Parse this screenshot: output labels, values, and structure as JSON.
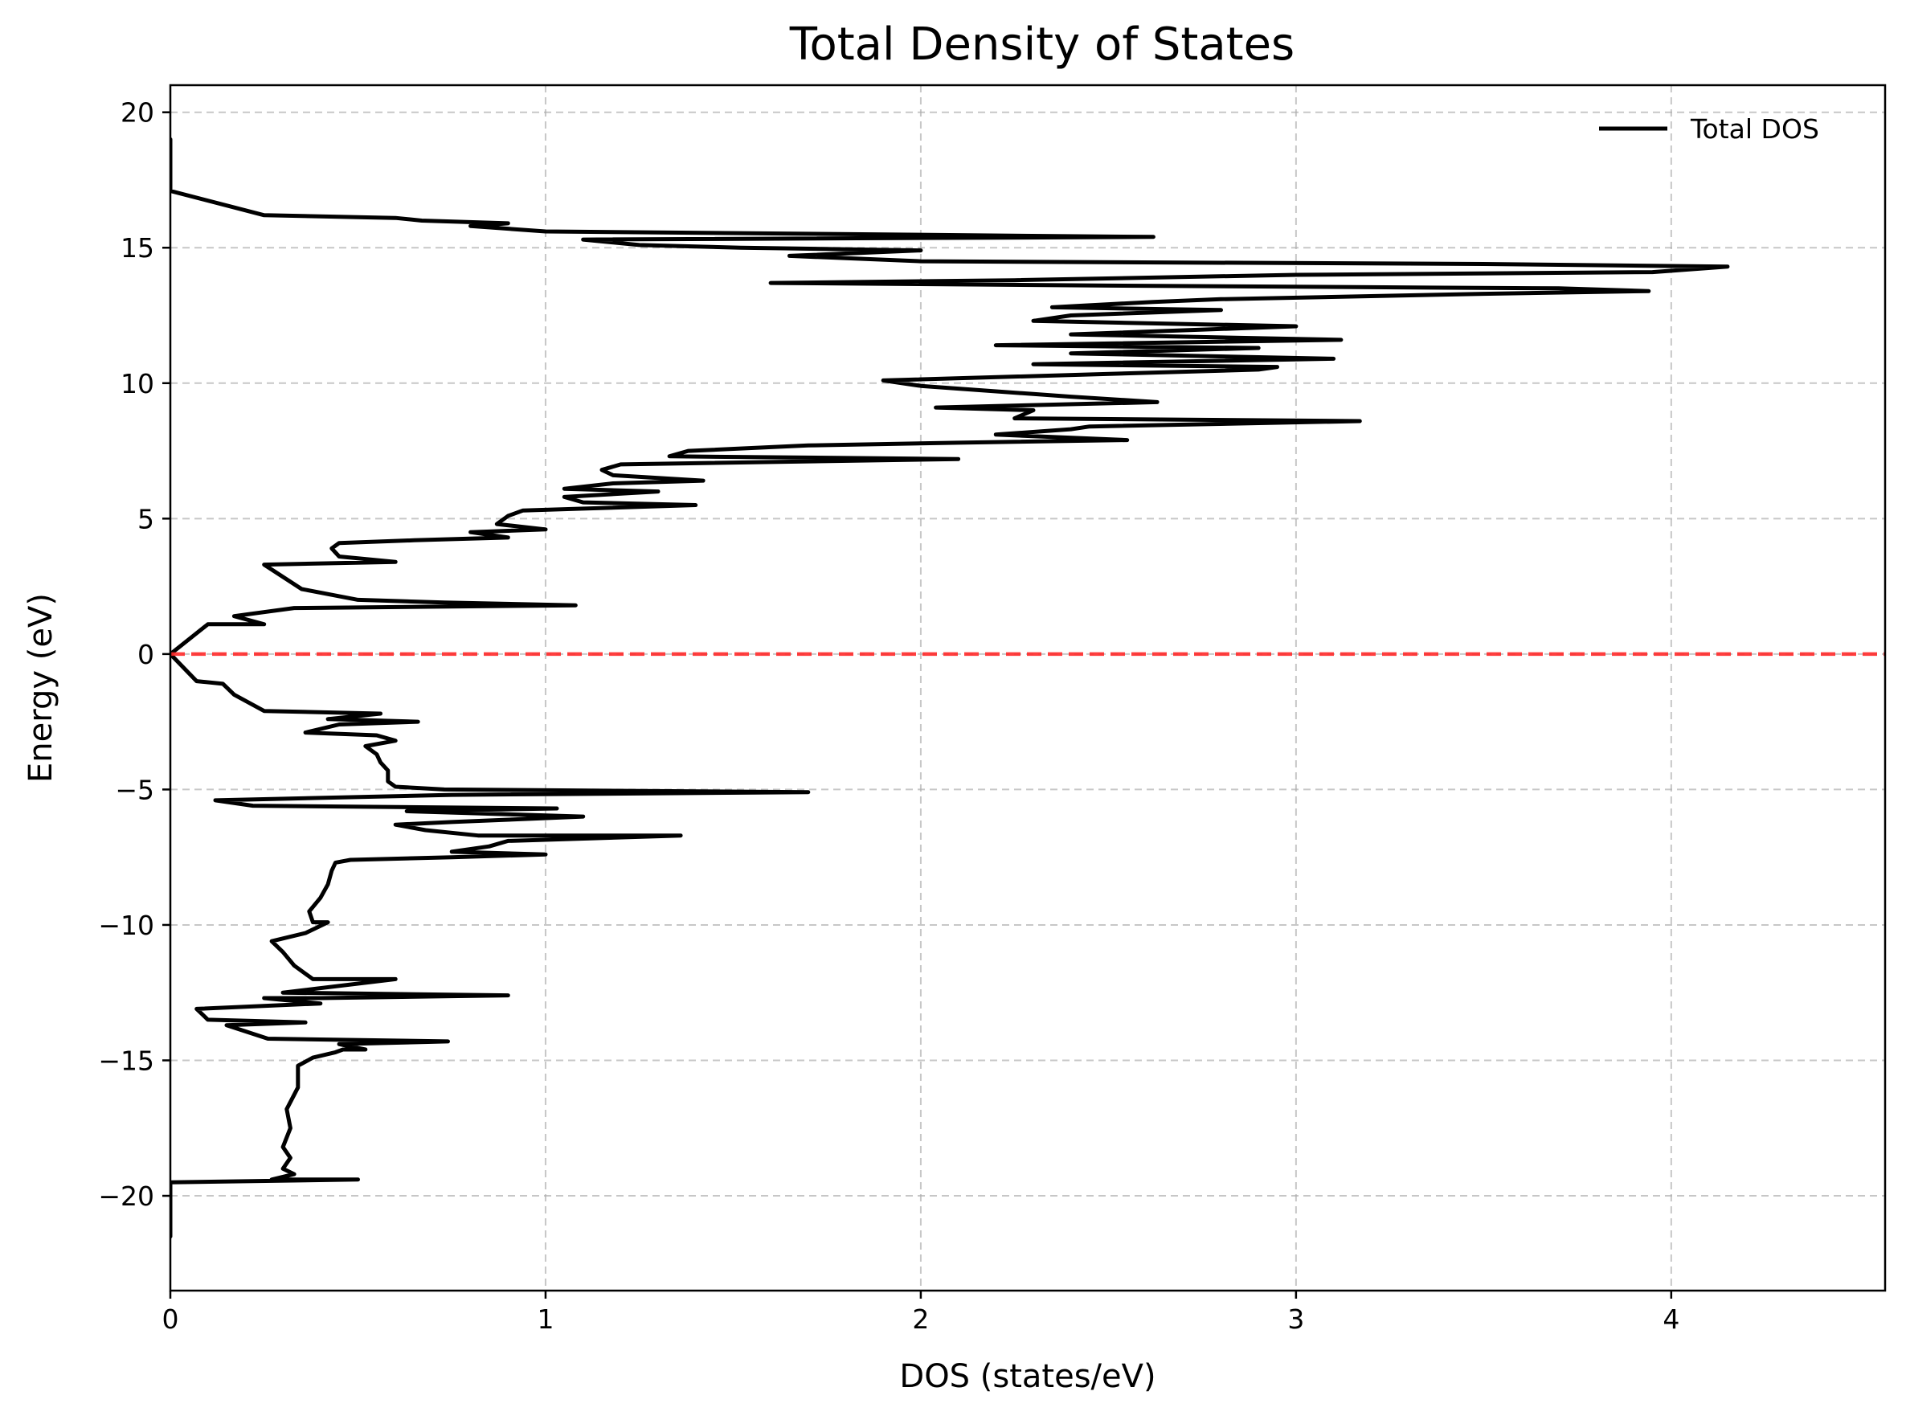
{
  "chart_data": {
    "type": "line",
    "title": "Total Density of States",
    "xlabel": "DOS (states/eV)",
    "ylabel": "Energy (eV)",
    "xlim": [
      0,
      4.57
    ],
    "ylim": [
      -23.5,
      21
    ],
    "x_ticks": [
      0,
      1,
      2,
      3,
      4
    ],
    "y_ticks": [
      -20,
      -15,
      -10,
      -5,
      0,
      5,
      10,
      15,
      20
    ],
    "x_tick_labels": [
      "0",
      "1",
      "2",
      "3",
      "4"
    ],
    "y_tick_labels": [
      "−20",
      "−15",
      "−10",
      "−5",
      "0",
      "5",
      "10",
      "15",
      "20"
    ],
    "grid": true,
    "legend_position": "top-right",
    "fermi_level": {
      "energy": 0,
      "color": "#ff2a2a",
      "style": "dashed"
    },
    "series": [
      {
        "name": "Total DOS",
        "color": "#000000",
        "x_axis": "dos",
        "y_axis": "energy",
        "points": [
          [
            0.0,
            -21.5
          ],
          [
            0.0,
            -19.5
          ],
          [
            0.5,
            -19.4
          ],
          [
            0.27,
            -19.4
          ],
          [
            0.33,
            -19.2
          ],
          [
            0.3,
            -19.0
          ],
          [
            0.32,
            -18.6
          ],
          [
            0.3,
            -18.2
          ],
          [
            0.32,
            -17.5
          ],
          [
            0.31,
            -16.8
          ],
          [
            0.34,
            -16.0
          ],
          [
            0.34,
            -15.2
          ],
          [
            0.38,
            -14.9
          ],
          [
            0.44,
            -14.7
          ],
          [
            0.46,
            -14.6
          ],
          [
            0.52,
            -14.6
          ],
          [
            0.45,
            -14.4
          ],
          [
            0.74,
            -14.3
          ],
          [
            0.26,
            -14.2
          ],
          [
            0.15,
            -13.7
          ],
          [
            0.36,
            -13.6
          ],
          [
            0.1,
            -13.5
          ],
          [
            0.07,
            -13.1
          ],
          [
            0.4,
            -12.9
          ],
          [
            0.25,
            -12.7
          ],
          [
            0.4,
            -12.7
          ],
          [
            0.9,
            -12.6
          ],
          [
            0.3,
            -12.5
          ],
          [
            0.6,
            -12.0
          ],
          [
            0.38,
            -12.0
          ],
          [
            0.33,
            -11.5
          ],
          [
            0.3,
            -11.0
          ],
          [
            0.27,
            -10.6
          ],
          [
            0.36,
            -10.3
          ],
          [
            0.42,
            -9.9
          ],
          [
            0.38,
            -9.9
          ],
          [
            0.37,
            -9.5
          ],
          [
            0.4,
            -9.0
          ],
          [
            0.42,
            -8.5
          ],
          [
            0.43,
            -8.0
          ],
          [
            0.44,
            -7.7
          ],
          [
            0.48,
            -7.6
          ],
          [
            0.75,
            -7.5
          ],
          [
            1.0,
            -7.4
          ],
          [
            0.75,
            -7.3
          ],
          [
            0.85,
            -7.1
          ],
          [
            0.9,
            -6.9
          ],
          [
            1.36,
            -6.7
          ],
          [
            0.82,
            -6.7
          ],
          [
            0.68,
            -6.5
          ],
          [
            0.6,
            -6.3
          ],
          [
            0.75,
            -6.2
          ],
          [
            1.1,
            -6.0
          ],
          [
            0.63,
            -5.8
          ],
          [
            1.03,
            -5.7
          ],
          [
            0.22,
            -5.6
          ],
          [
            0.12,
            -5.4
          ],
          [
            0.75,
            -5.2
          ],
          [
            1.7,
            -5.1
          ],
          [
            0.73,
            -5.0
          ],
          [
            0.6,
            -4.9
          ],
          [
            0.58,
            -4.7
          ],
          [
            0.58,
            -4.3
          ],
          [
            0.56,
            -4.0
          ],
          [
            0.55,
            -3.7
          ],
          [
            0.52,
            -3.4
          ],
          [
            0.6,
            -3.2
          ],
          [
            0.55,
            -3.0
          ],
          [
            0.36,
            -2.9
          ],
          [
            0.45,
            -2.6
          ],
          [
            0.66,
            -2.5
          ],
          [
            0.42,
            -2.4
          ],
          [
            0.56,
            -2.2
          ],
          [
            0.25,
            -2.1
          ],
          [
            0.17,
            -1.5
          ],
          [
            0.14,
            -1.1
          ],
          [
            0.07,
            -1.0
          ],
          [
            0.0,
            0.0
          ],
          [
            0.1,
            1.1
          ],
          [
            0.25,
            1.1
          ],
          [
            0.17,
            1.4
          ],
          [
            0.33,
            1.7
          ],
          [
            1.08,
            1.8
          ],
          [
            0.73,
            1.9
          ],
          [
            0.5,
            2.0
          ],
          [
            0.35,
            2.4
          ],
          [
            0.25,
            3.3
          ],
          [
            0.6,
            3.4
          ],
          [
            0.45,
            3.6
          ],
          [
            0.43,
            3.9
          ],
          [
            0.45,
            4.1
          ],
          [
            0.65,
            4.2
          ],
          [
            0.9,
            4.3
          ],
          [
            0.8,
            4.5
          ],
          [
            1.0,
            4.6
          ],
          [
            0.87,
            4.8
          ],
          [
            0.9,
            5.1
          ],
          [
            0.94,
            5.3
          ],
          [
            1.4,
            5.5
          ],
          [
            1.1,
            5.6
          ],
          [
            1.05,
            5.8
          ],
          [
            1.3,
            6.0
          ],
          [
            1.05,
            6.1
          ],
          [
            1.18,
            6.3
          ],
          [
            1.42,
            6.4
          ],
          [
            1.18,
            6.6
          ],
          [
            1.15,
            6.8
          ],
          [
            1.2,
            7.0
          ],
          [
            2.1,
            7.2
          ],
          [
            1.33,
            7.3
          ],
          [
            1.38,
            7.5
          ],
          [
            1.7,
            7.7
          ],
          [
            2.1,
            7.8
          ],
          [
            2.55,
            7.9
          ],
          [
            2.2,
            8.1
          ],
          [
            2.4,
            8.3
          ],
          [
            2.45,
            8.4
          ],
          [
            3.17,
            8.6
          ],
          [
            2.25,
            8.7
          ],
          [
            2.3,
            9.0
          ],
          [
            2.04,
            9.1
          ],
          [
            2.63,
            9.3
          ],
          [
            2.4,
            9.5
          ],
          [
            2.3,
            9.6
          ],
          [
            2.0,
            9.9
          ],
          [
            1.9,
            10.1
          ],
          [
            2.9,
            10.5
          ],
          [
            2.95,
            10.6
          ],
          [
            2.3,
            10.7
          ],
          [
            3.1,
            10.9
          ],
          [
            2.4,
            11.1
          ],
          [
            2.9,
            11.3
          ],
          [
            2.2,
            11.4
          ],
          [
            3.12,
            11.6
          ],
          [
            2.4,
            11.8
          ],
          [
            3.0,
            12.1
          ],
          [
            2.3,
            12.3
          ],
          [
            2.4,
            12.5
          ],
          [
            2.6,
            12.6
          ],
          [
            2.8,
            12.7
          ],
          [
            2.35,
            12.8
          ],
          [
            2.62,
            13.0
          ],
          [
            2.8,
            13.1
          ],
          [
            3.5,
            13.3
          ],
          [
            3.94,
            13.4
          ],
          [
            3.7,
            13.5
          ],
          [
            2.5,
            13.6
          ],
          [
            1.6,
            13.7
          ],
          [
            2.25,
            13.8
          ],
          [
            3.0,
            14.0
          ],
          [
            3.95,
            14.1
          ],
          [
            4.15,
            14.3
          ],
          [
            3.5,
            14.4
          ],
          [
            2.0,
            14.5
          ],
          [
            1.65,
            14.7
          ],
          [
            2.0,
            14.9
          ],
          [
            1.52,
            15.0
          ],
          [
            1.25,
            15.1
          ],
          [
            1.1,
            15.3
          ],
          [
            2.62,
            15.4
          ],
          [
            1.0,
            15.6
          ],
          [
            0.8,
            15.8
          ],
          [
            0.9,
            15.9
          ],
          [
            0.67,
            16.0
          ],
          [
            0.6,
            16.1
          ],
          [
            0.25,
            16.2
          ],
          [
            0.0,
            17.1
          ],
          [
            0.0,
            19.0
          ]
        ]
      }
    ]
  }
}
